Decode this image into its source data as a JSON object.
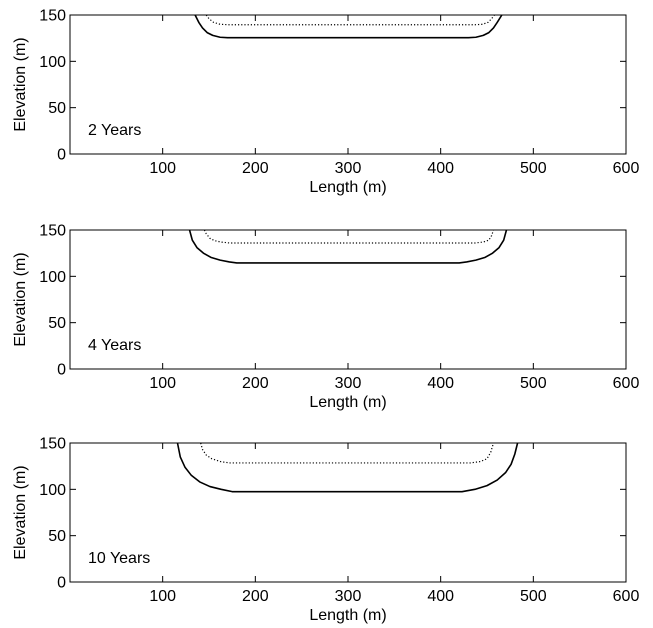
{
  "chart_data": [
    {
      "type": "line",
      "annotation": "2 Years",
      "xlabel": "Length (m)",
      "ylabel": "Elevation (m)",
      "xlim": [
        0,
        600
      ],
      "ylim": [
        0,
        150
      ],
      "xticks": [
        100,
        200,
        300,
        400,
        500,
        600
      ],
      "yticks": [
        0,
        50,
        100,
        150
      ],
      "grid": false,
      "series": [
        {
          "style": "solid",
          "color": "#000000",
          "x": [
            135,
            139,
            143,
            148,
            154,
            162,
            170,
            200,
            300,
            400,
            430,
            438,
            446,
            452,
            457,
            461,
            466
          ],
          "y": [
            150,
            142,
            136,
            131,
            128,
            126,
            125.5,
            125.5,
            125.5,
            125.5,
            125.5,
            126,
            128,
            131,
            136,
            142,
            150
          ]
        },
        {
          "style": "dotted",
          "color": "#000000",
          "x": [
            147,
            150,
            155,
            162,
            170,
            200,
            300,
            400,
            437,
            445,
            451,
            455,
            458
          ],
          "y": [
            150,
            146,
            142,
            140,
            139.5,
            139.5,
            139.5,
            139.5,
            139.5,
            140,
            142,
            146,
            150
          ]
        }
      ]
    },
    {
      "type": "line",
      "annotation": "4 Years",
      "xlabel": "Length (m)",
      "ylabel": "Elevation (m)",
      "xlim": [
        0,
        600
      ],
      "ylim": [
        0,
        150
      ],
      "xticks": [
        100,
        200,
        300,
        400,
        500,
        600
      ],
      "yticks": [
        0,
        50,
        100,
        150
      ],
      "grid": false,
      "series": [
        {
          "style": "solid",
          "color": "#000000",
          "x": [
            129,
            132,
            137,
            144,
            152,
            162,
            172,
            180,
            300,
            420,
            428,
            438,
            448,
            456,
            463,
            468,
            471
          ],
          "y": [
            150,
            139,
            131,
            125,
            120.5,
            117.5,
            115.5,
            114.5,
            114.5,
            114.5,
            115.5,
            117.5,
            120.5,
            125,
            131,
            139,
            150
          ]
        },
        {
          "style": "dotted",
          "color": "#000000",
          "x": [
            145,
            147,
            151,
            156,
            163,
            172,
            200,
            300,
            400,
            437,
            446,
            452,
            455,
            457
          ],
          "y": [
            150,
            146,
            141,
            138.5,
            137,
            136,
            136,
            136,
            136,
            136,
            137,
            139,
            144,
            150
          ]
        }
      ]
    },
    {
      "type": "line",
      "annotation": "10 Years",
      "xlabel": "Length (m)",
      "ylabel": "Elevation (m)",
      "xlim": [
        0,
        600
      ],
      "ylim": [
        0,
        150
      ],
      "xticks": [
        100,
        200,
        300,
        400,
        500,
        600
      ],
      "yticks": [
        0,
        50,
        100,
        150
      ],
      "grid": false,
      "series": [
        {
          "style": "solid",
          "color": "#000000",
          "x": [
            116,
            119,
            124,
            131,
            140,
            151,
            163,
            175,
            300,
            423,
            437,
            450,
            461,
            470,
            476,
            480,
            483
          ],
          "y": [
            150,
            135,
            124,
            115,
            108,
            103,
            100,
            97.5,
            97.5,
            97.5,
            100,
            104,
            110,
            118,
            127,
            138,
            150
          ]
        },
        {
          "style": "dotted",
          "color": "#000000",
          "x": [
            141,
            143,
            147,
            153,
            162,
            172,
            200,
            300,
            400,
            432,
            443,
            450,
            454,
            457
          ],
          "y": [
            150,
            143,
            137,
            133,
            130,
            128.5,
            128.5,
            128.5,
            128.5,
            128.5,
            130,
            133,
            140,
            150
          ]
        }
      ]
    }
  ]
}
